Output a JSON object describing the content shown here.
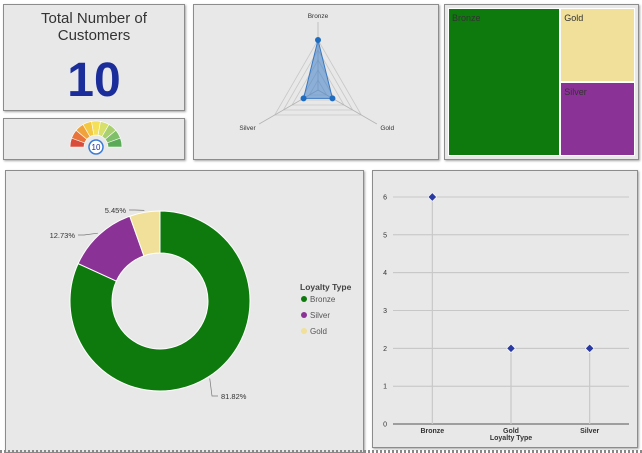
{
  "kpi": {
    "title": "Total Number of Customers",
    "value": "10"
  },
  "gauge": {
    "value": 10,
    "label": "10"
  },
  "colors": {
    "bronze": "#0e7a0e",
    "silver": "#8b3296",
    "gold": "#f0e09a"
  },
  "chart_data": [
    {
      "type": "radar",
      "categories": [
        "Bronze",
        "Gold",
        "Silver"
      ],
      "values": [
        6,
        2,
        2
      ]
    },
    {
      "type": "treemap",
      "categories": [
        "Bronze",
        "Gold",
        "Silver"
      ],
      "values": [
        6,
        2,
        2
      ]
    },
    {
      "type": "pie",
      "categories": [
        "Bronze",
        "Silver",
        "Gold"
      ],
      "values": [
        81.82,
        12.73,
        5.45
      ],
      "labels": [
        "81.82%",
        "12.73%",
        "5.45%"
      ],
      "legend_title": "Loyalty Type",
      "legend": [
        "Bronze",
        "Silver",
        "Gold"
      ],
      "legend_position": "right"
    },
    {
      "type": "scatter",
      "categories": [
        "Bronze",
        "Gold",
        "Silver"
      ],
      "values": [
        6,
        2,
        2
      ],
      "xlabel": "Loyalty Type",
      "ylabel": "",
      "ylim": [
        0,
        6
      ],
      "yticks": [
        "0",
        "1",
        "2",
        "3",
        "4",
        "5",
        "6"
      ],
      "grid": true
    }
  ]
}
